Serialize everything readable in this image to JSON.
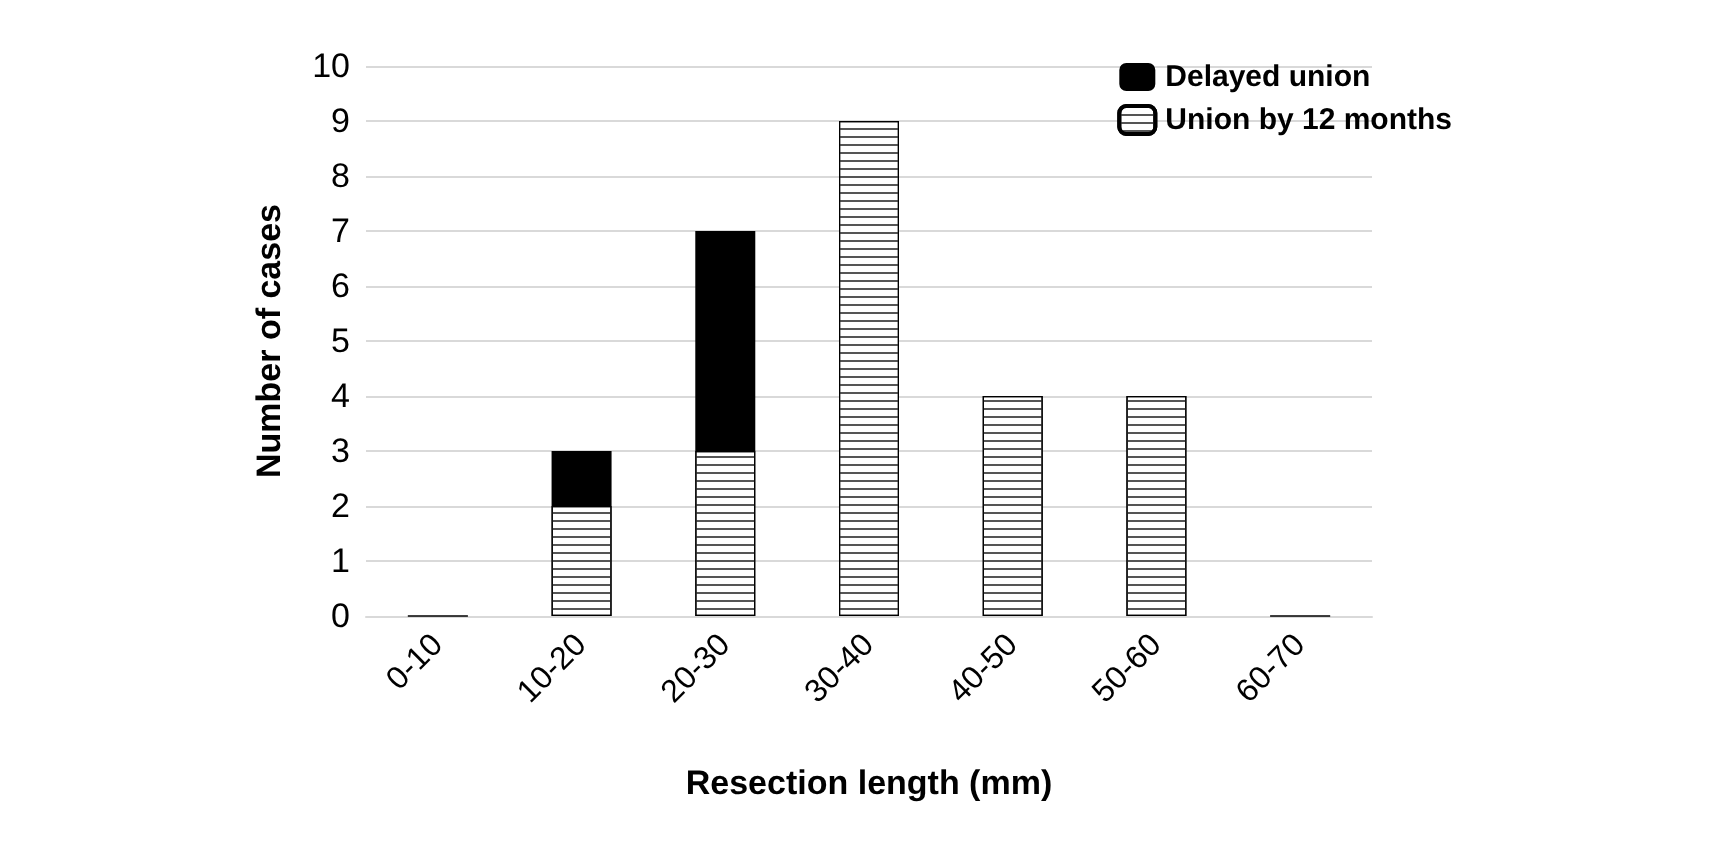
{
  "chart_data": {
    "type": "bar",
    "stacked": true,
    "xlabel": "Resection length (mm)",
    "ylabel": "Number of cases",
    "categories": [
      "0-10",
      "10-20",
      "20-30",
      "30-40",
      "40-50",
      "50-60",
      "60-70"
    ],
    "series": [
      {
        "name": "Union by 12 months",
        "color": "#ffffff",
        "values": [
          0,
          2,
          3,
          9,
          4,
          4,
          0
        ]
      },
      {
        "name": "Delayed union",
        "color": "#000000",
        "values": [
          0,
          1,
          4,
          0,
          0,
          0,
          0
        ]
      }
    ],
    "ylim": [
      0,
      10
    ],
    "yticks": [
      0,
      1,
      2,
      3,
      4,
      5,
      6,
      7,
      8,
      9,
      10
    ],
    "grid": "y",
    "legend": "top right"
  }
}
